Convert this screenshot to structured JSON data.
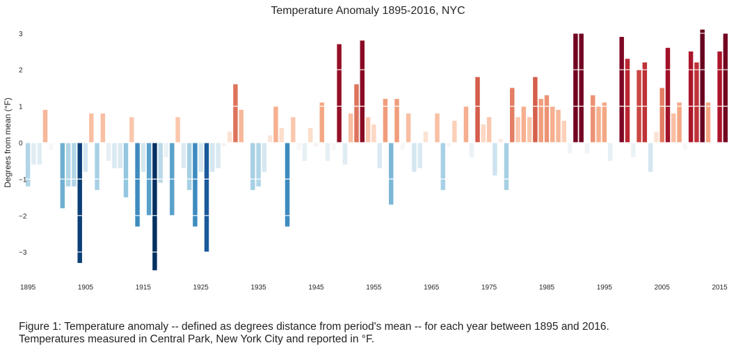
{
  "chart_data": {
    "type": "bar",
    "title": "Temperature Anomaly 1895-2016, NYC",
    "xlabel": "",
    "ylabel": "Degrees from mean (°F)",
    "ylim": [
      -3.8,
      3.3
    ],
    "yticks": [
      3,
      2,
      1,
      0,
      -1,
      -2,
      -3
    ],
    "ytick_labels": [
      "3",
      "2",
      "1",
      "0",
      "−1",
      "−2",
      "−3"
    ],
    "xtick_labels": [
      "1895",
      "1905",
      "1915",
      "1925",
      "1935",
      "1945",
      "1955",
      "1965",
      "1975",
      "1985",
      "1995",
      "2005",
      "2015"
    ],
    "grid": true,
    "colormap": "RdBu_r",
    "color_range": [
      -3.5,
      3.1
    ],
    "x": [
      1895,
      1896,
      1897,
      1898,
      1899,
      1900,
      1901,
      1902,
      1903,
      1904,
      1905,
      1906,
      1907,
      1908,
      1909,
      1910,
      1911,
      1912,
      1913,
      1914,
      1915,
      1916,
      1917,
      1918,
      1919,
      1920,
      1921,
      1922,
      1923,
      1924,
      1925,
      1926,
      1927,
      1928,
      1929,
      1930,
      1931,
      1932,
      1933,
      1934,
      1935,
      1936,
      1937,
      1938,
      1939,
      1940,
      1941,
      1942,
      1943,
      1944,
      1945,
      1946,
      1947,
      1948,
      1949,
      1950,
      1951,
      1952,
      1953,
      1954,
      1955,
      1956,
      1957,
      1958,
      1959,
      1960,
      1961,
      1962,
      1963,
      1964,
      1965,
      1966,
      1967,
      1968,
      1969,
      1970,
      1971,
      1972,
      1973,
      1974,
      1975,
      1976,
      1977,
      1978,
      1979,
      1980,
      1981,
      1982,
      1983,
      1984,
      1985,
      1986,
      1987,
      1988,
      1989,
      1990,
      1991,
      1992,
      1993,
      1994,
      1995,
      1996,
      1997,
      1998,
      1999,
      2000,
      2001,
      2002,
      2003,
      2004,
      2005,
      2006,
      2007,
      2008,
      2009,
      2010,
      2011,
      2012,
      2013,
      2014,
      2015,
      2016
    ],
    "values": [
      -1.2,
      -0.6,
      -0.6,
      0.9,
      -0.2,
      0.0,
      -1.8,
      -1.2,
      -1.2,
      -3.3,
      -0.8,
      0.8,
      -1.3,
      0.8,
      -0.5,
      -0.7,
      -0.7,
      -1.5,
      0.7,
      -2.3,
      -0.8,
      -2.0,
      -3.5,
      -1.1,
      -0.4,
      -2.0,
      0.7,
      -0.7,
      -1.3,
      -2.3,
      -0.8,
      -3.0,
      -0.8,
      -0.7,
      -0.1,
      0.3,
      1.6,
      0.9,
      0.0,
      -1.3,
      -1.2,
      -0.8,
      0.2,
      1.0,
      0.4,
      -2.3,
      0.7,
      -0.2,
      -0.5,
      0.4,
      -0.1,
      1.1,
      -0.5,
      -0.2,
      2.7,
      -0.6,
      0.8,
      1.6,
      2.8,
      0.7,
      0.5,
      -0.7,
      1.2,
      -1.7,
      1.2,
      -0.2,
      0.8,
      -0.8,
      -0.7,
      0.3,
      0.0,
      0.8,
      -1.3,
      -0.1,
      0.6,
      0.0,
      1.0,
      -0.4,
      1.8,
      0.5,
      0.7,
      -0.9,
      0.1,
      -1.3,
      1.5,
      0.7,
      1.0,
      0.7,
      1.8,
      1.2,
      1.3,
      1.0,
      0.9,
      0.6,
      -0.3,
      3.0,
      3.0,
      -0.3,
      1.3,
      1.0,
      1.1,
      -0.5,
      0.0,
      2.9,
      2.3,
      -0.4,
      2.0,
      2.2,
      -0.8,
      0.3,
      1.5,
      2.6,
      0.8,
      1.1,
      -0.2,
      2.5,
      2.2,
      3.1,
      1.1,
      0.0,
      2.5,
      3.0
    ]
  },
  "caption": {
    "line1": "Figure 1:  Temperature anomaly -- defined as degrees distance from period's mean -- for each year between 1895 and 2016.",
    "line2": "Temperatures measured in Central Park, New York City and reported in °F."
  }
}
